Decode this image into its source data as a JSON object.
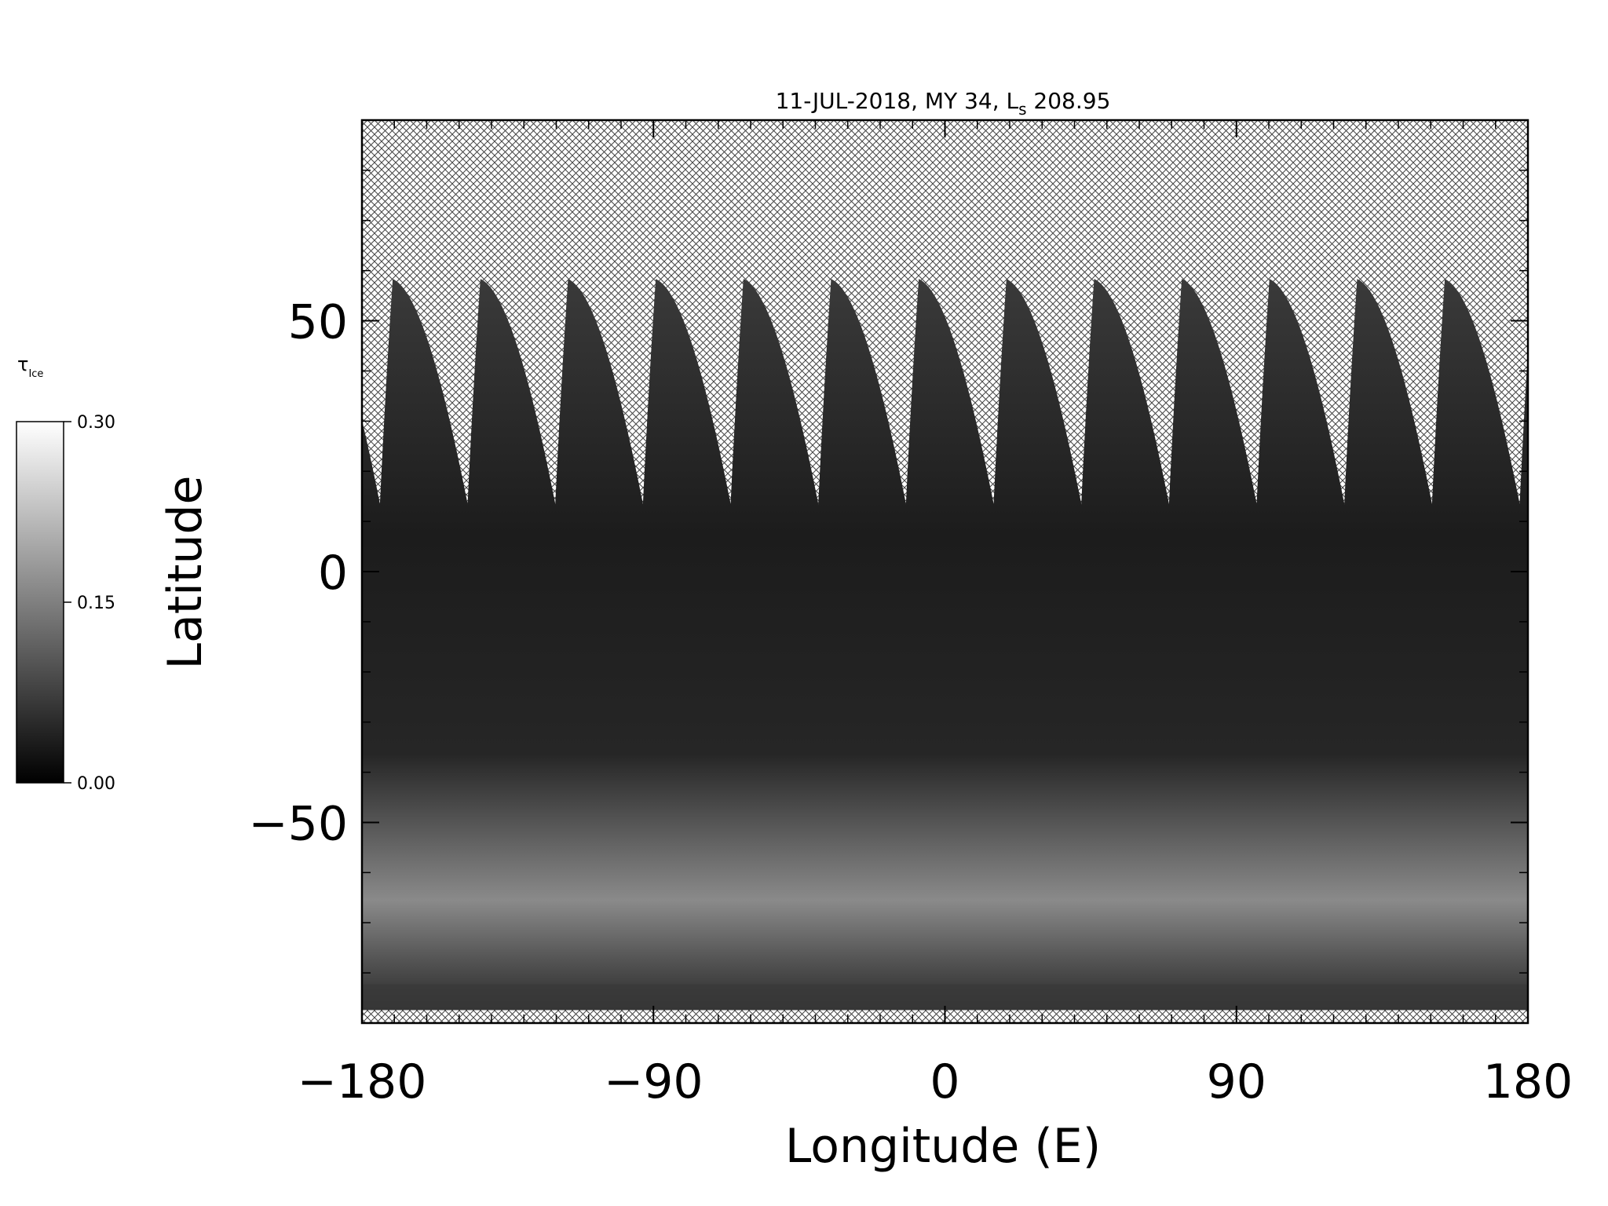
{
  "chart_data": {
    "type": "map",
    "title": [
      "11-JUL-2018, MY 34,  L",
      "s",
      " 208.95"
    ],
    "xlabel": "Longitude (E)",
    "ylabel": "Latitude",
    "xlim": [
      -180,
      180
    ],
    "xticks": [
      {
        "value": -180,
        "label": "−180"
      },
      {
        "value": -90,
        "label": "−90"
      },
      0,
      90,
      180
    ],
    "xminorticks": [
      -170,
      -160,
      -150,
      -140,
      -130,
      -120,
      -110,
      -100,
      -80,
      -70,
      -60,
      -50,
      -40,
      -30,
      -20,
      -10,
      10,
      20,
      30,
      40,
      50,
      60,
      70,
      80,
      100,
      110,
      120,
      130,
      140,
      150,
      160,
      170
    ],
    "ylim": [
      -90,
      90
    ],
    "yticks": [
      {
        "value": -50,
        "label": "−50"
      },
      0,
      50
    ],
    "yminorticks": [
      -80,
      -70,
      -60,
      -40,
      -30,
      -20,
      -10,
      10,
      20,
      30,
      40,
      60,
      70,
      80
    ],
    "colorbar": {
      "label": "τ",
      "label_subscript": "Ice",
      "lim": [
        0,
        0.3
      ],
      "ticks": [
        {
          "value": 0,
          "label": "0.00"
        },
        {
          "value": 0.15,
          "label": "0.15"
        },
        {
          "value": 0.3,
          "label": "0.30"
        }
      ]
    }
  }
}
